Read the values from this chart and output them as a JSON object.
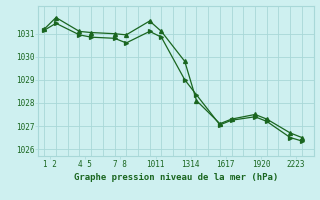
{
  "title": "Graphe pression niveau de la mer (hPa)",
  "bg_color": "#cef0f0",
  "grid_color": "#a8d8d8",
  "line_color": "#1a6620",
  "xlim": [
    0.5,
    24
  ],
  "ylim": [
    1025.7,
    1032.2
  ],
  "xtick_positions": [
    1.5,
    4.5,
    7.5,
    10.5,
    13.5,
    16.5,
    19.5,
    22.5
  ],
  "xtick_labels": [
    "1 2",
    "4 5",
    "7 8",
    "1011",
    "1314",
    "1617",
    "1920",
    "2223"
  ],
  "ytick_positions": [
    1026,
    1027,
    1028,
    1029,
    1030,
    1031
  ],
  "ytick_labels": [
    "1026",
    "1027",
    "1028",
    "1029",
    "1030",
    "1031"
  ],
  "grid_x": [
    1,
    2,
    3,
    4,
    5,
    6,
    7,
    8,
    9,
    10,
    11,
    12,
    13,
    14,
    15,
    16,
    17,
    18,
    19,
    20,
    21,
    22,
    23,
    24
  ],
  "series1_x": [
    1,
    2,
    4,
    5,
    7,
    8,
    10,
    11,
    13,
    14,
    16,
    17,
    19,
    20,
    22,
    23
  ],
  "series1_y": [
    1031.2,
    1031.7,
    1031.1,
    1031.05,
    1031.0,
    1030.95,
    1031.55,
    1031.1,
    1029.8,
    1028.1,
    1027.1,
    1027.3,
    1027.5,
    1027.3,
    1026.7,
    1026.5
  ],
  "series2_x": [
    1,
    2,
    4,
    5,
    7,
    8,
    10,
    11,
    13,
    14,
    16,
    17,
    19,
    20,
    22,
    23
  ],
  "series2_y": [
    1031.15,
    1031.45,
    1030.95,
    1030.85,
    1030.8,
    1030.6,
    1031.1,
    1030.85,
    1029.0,
    1028.35,
    1027.05,
    1027.25,
    1027.4,
    1027.2,
    1026.5,
    1026.35
  ]
}
